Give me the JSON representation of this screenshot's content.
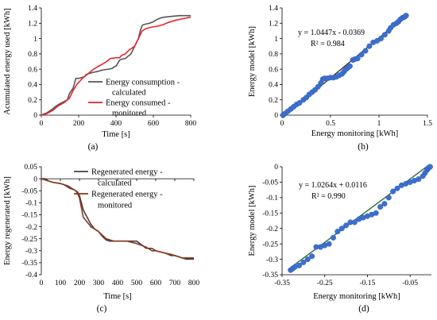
{
  "chart_data": [
    {
      "type": "line",
      "panel_label": "(a)",
      "xlabel": "Time [s]",
      "ylabel": "Acumulated energy used [kWh]",
      "xlim": [
        0,
        800
      ],
      "ylim": [
        0,
        1.4
      ],
      "xticks": [
        0,
        200,
        400,
        600,
        800
      ],
      "yticks": [
        0,
        0.2,
        0.4,
        0.6,
        0.8,
        1,
        1.2,
        1.4
      ],
      "grid": false,
      "legend_position": "right",
      "series": [
        {
          "name": "Energy consumption - calculated",
          "color": "#555555",
          "x": [
            0,
            30,
            60,
            80,
            100,
            140,
            150,
            170,
            185,
            200,
            230,
            240,
            250,
            280,
            300,
            330,
            360,
            380,
            390,
            400,
            420,
            430,
            450,
            480,
            520,
            530,
            540,
            545,
            560,
            580,
            600,
            620,
            640,
            660,
            700,
            740,
            780,
            800
          ],
          "y": [
            0,
            0.03,
            0.08,
            0.12,
            0.15,
            0.2,
            0.28,
            0.35,
            0.48,
            0.48,
            0.5,
            0.53,
            0.54,
            0.56,
            0.57,
            0.59,
            0.6,
            0.61,
            0.63,
            0.64,
            0.72,
            0.73,
            0.74,
            0.8,
            1.0,
            1.1,
            1.17,
            1.18,
            1.19,
            1.2,
            1.22,
            1.25,
            1.27,
            1.28,
            1.29,
            1.3,
            1.3,
            1.3
          ]
        },
        {
          "name": "Energy consumed - monitored",
          "color": "#e8262c",
          "x": [
            0,
            30,
            60,
            90,
            120,
            150,
            170,
            190,
            220,
            240,
            260,
            280,
            300,
            330,
            350,
            370,
            400,
            420,
            430,
            450,
            470,
            500,
            540,
            560,
            590,
            620,
            650,
            680,
            720,
            760,
            800
          ],
          "y": [
            0,
            0.02,
            0.06,
            0.12,
            0.16,
            0.22,
            0.32,
            0.4,
            0.48,
            0.52,
            0.56,
            0.6,
            0.63,
            0.67,
            0.7,
            0.74,
            0.75,
            0.75,
            0.78,
            0.8,
            0.85,
            0.9,
            1.1,
            1.13,
            1.15,
            1.16,
            1.18,
            1.21,
            1.24,
            1.26,
            1.28
          ]
        }
      ]
    },
    {
      "type": "scatter",
      "panel_label": "(b)",
      "xlabel": "Energy monitoring [kWh]",
      "ylabel": "Energy model [kWh]",
      "xlim": [
        0,
        1.5
      ],
      "ylim": [
        0,
        1.4
      ],
      "xticks": [
        0,
        0.5,
        1,
        1.5
      ],
      "yticks": [
        0,
        0.2,
        0.4,
        0.6,
        0.8,
        1,
        1.2,
        1.4
      ],
      "grid": false,
      "annotation": [
        "y = 1.0447x - 0.0369",
        "R² = 0.984"
      ],
      "trendline": {
        "slope": 1.0447,
        "intercept": -0.0369,
        "x_range": [
          0,
          1.3
        ],
        "color": "#333333"
      },
      "point_color": "#3c6fcf",
      "points": [
        [
          0.01,
          0.0
        ],
        [
          0.03,
          0.02
        ],
        [
          0.06,
          0.05
        ],
        [
          0.09,
          0.08
        ],
        [
          0.12,
          0.11
        ],
        [
          0.15,
          0.14
        ],
        [
          0.18,
          0.16
        ],
        [
          0.22,
          0.2
        ],
        [
          0.25,
          0.23
        ],
        [
          0.28,
          0.27
        ],
        [
          0.31,
          0.3
        ],
        [
          0.34,
          0.33
        ],
        [
          0.37,
          0.37
        ],
        [
          0.4,
          0.42
        ],
        [
          0.42,
          0.47
        ],
        [
          0.44,
          0.48
        ],
        [
          0.47,
          0.48
        ],
        [
          0.5,
          0.49
        ],
        [
          0.53,
          0.49
        ],
        [
          0.56,
          0.5
        ],
        [
          0.59,
          0.52
        ],
        [
          0.62,
          0.54
        ],
        [
          0.64,
          0.57
        ],
        [
          0.66,
          0.6
        ],
        [
          0.68,
          0.62
        ],
        [
          0.7,
          0.64
        ],
        [
          0.73,
          0.72
        ],
        [
          0.75,
          0.73
        ],
        [
          0.78,
          0.74
        ],
        [
          0.82,
          0.79
        ],
        [
          0.86,
          0.84
        ],
        [
          0.9,
          0.9
        ],
        [
          0.94,
          0.95
        ],
        [
          0.98,
          0.97
        ],
        [
          1.02,
          1.0
        ],
        [
          1.06,
          1.05
        ],
        [
          1.1,
          1.1
        ],
        [
          1.12,
          1.14
        ],
        [
          1.15,
          1.18
        ],
        [
          1.18,
          1.2
        ],
        [
          1.2,
          1.22
        ],
        [
          1.22,
          1.25
        ],
        [
          1.24,
          1.27
        ],
        [
          1.26,
          1.28
        ],
        [
          1.27,
          1.29
        ],
        [
          1.28,
          1.3
        ]
      ]
    },
    {
      "type": "line",
      "panel_label": "(c)",
      "xlabel": "Time [s]",
      "ylabel": "Energy regenerated [kWh]",
      "xlim": [
        0,
        800
      ],
      "ylim": [
        -0.4,
        0.05
      ],
      "xticks": [
        0,
        100,
        200,
        300,
        400,
        500,
        600,
        700,
        800
      ],
      "yticks": [
        0.05,
        0,
        -0.05,
        -0.1,
        -0.15,
        -0.2,
        -0.25,
        -0.3,
        -0.35,
        -0.4
      ],
      "grid": false,
      "legend_position": "top-right",
      "series": [
        {
          "name": "Regenerated energy - calculated",
          "color": "#4a3b47",
          "x": [
            0,
            20,
            40,
            60,
            100,
            120,
            140,
            150,
            170,
            180,
            190,
            200,
            210,
            220,
            240,
            260,
            280,
            300,
            320,
            340,
            360,
            380,
            400,
            450,
            500,
            550,
            560,
            580,
            600,
            650,
            680,
            700,
            740,
            760,
            800
          ],
          "y": [
            0,
            0,
            -0.01,
            -0.015,
            -0.02,
            -0.025,
            -0.035,
            -0.04,
            -0.045,
            -0.05,
            -0.055,
            -0.07,
            -0.1,
            -0.13,
            -0.16,
            -0.19,
            -0.21,
            -0.22,
            -0.24,
            -0.255,
            -0.26,
            -0.26,
            -0.26,
            -0.26,
            -0.26,
            -0.29,
            -0.29,
            -0.29,
            -0.3,
            -0.31,
            -0.32,
            -0.32,
            -0.33,
            -0.335,
            -0.335
          ]
        },
        {
          "name": "Regenerated energy - monitored",
          "color": "#8b3a1a",
          "x": [
            0,
            20,
            40,
            60,
            100,
            120,
            140,
            150,
            170,
            180,
            190,
            200,
            210,
            220,
            240,
            260,
            280,
            300,
            320,
            340,
            360,
            380,
            400,
            450,
            500,
            550,
            560,
            580,
            600,
            650,
            680,
            700,
            740,
            760,
            800
          ],
          "y": [
            0,
            -0.005,
            -0.01,
            -0.015,
            -0.02,
            -0.025,
            -0.03,
            -0.035,
            -0.045,
            -0.05,
            -0.06,
            -0.08,
            -0.12,
            -0.16,
            -0.18,
            -0.2,
            -0.21,
            -0.22,
            -0.235,
            -0.25,
            -0.255,
            -0.26,
            -0.26,
            -0.26,
            -0.27,
            -0.285,
            -0.29,
            -0.3,
            -0.3,
            -0.31,
            -0.315,
            -0.32,
            -0.33,
            -0.33,
            -0.33
          ]
        }
      ]
    },
    {
      "type": "scatter",
      "panel_label": "(d)",
      "xlabel": "Energy monitoring [kWh]",
      "ylabel": "Energy model [kWh]",
      "xlim": [
        -0.35,
        0.0
      ],
      "ylim": [
        -0.35,
        0.0
      ],
      "xticks": [
        -0.35,
        -0.25,
        -0.15,
        -0.05
      ],
      "xtick_labels": [
        "-0.35",
        "-0.25",
        "-0.15",
        "-0.05"
      ],
      "yticks": [
        0,
        -0.05,
        -0.1,
        -0.15,
        -0.2,
        -0.25,
        -0.3,
        -0.35
      ],
      "grid": false,
      "annotation": [
        "y = 1.0264x + 0.0116",
        "R² = 0.990"
      ],
      "trendline": {
        "slope": 1.0264,
        "intercept": 0.0116,
        "x_range": [
          -0.335,
          -0.01
        ],
        "color": "#2e6b3a"
      },
      "point_color": "#3c6fcf",
      "points": [
        [
          -0.33,
          -0.335
        ],
        [
          -0.325,
          -0.33
        ],
        [
          -0.32,
          -0.325
        ],
        [
          -0.31,
          -0.32
        ],
        [
          -0.3,
          -0.31
        ],
        [
          -0.29,
          -0.3
        ],
        [
          -0.28,
          -0.29
        ],
        [
          -0.27,
          -0.26
        ],
        [
          -0.26,
          -0.26
        ],
        [
          -0.25,
          -0.255
        ],
        [
          -0.24,
          -0.25
        ],
        [
          -0.23,
          -0.23
        ],
        [
          -0.22,
          -0.21
        ],
        [
          -0.21,
          -0.2
        ],
        [
          -0.2,
          -0.19
        ],
        [
          -0.19,
          -0.18
        ],
        [
          -0.18,
          -0.18
        ],
        [
          -0.17,
          -0.17
        ],
        [
          -0.16,
          -0.165
        ],
        [
          -0.15,
          -0.16
        ],
        [
          -0.14,
          -0.155
        ],
        [
          -0.13,
          -0.15
        ],
        [
          -0.12,
          -0.13
        ],
        [
          -0.11,
          -0.12
        ],
        [
          -0.1,
          -0.1
        ],
        [
          -0.09,
          -0.08
        ],
        [
          -0.08,
          -0.07
        ],
        [
          -0.07,
          -0.06
        ],
        [
          -0.06,
          -0.055
        ],
        [
          -0.05,
          -0.05
        ],
        [
          -0.04,
          -0.045
        ],
        [
          -0.03,
          -0.04
        ],
        [
          -0.02,
          -0.03
        ],
        [
          -0.015,
          -0.02
        ],
        [
          -0.01,
          -0.01
        ],
        [
          -0.008,
          -0.005
        ],
        [
          -0.005,
          -0.002
        ],
        [
          -0.003,
          0.0
        ]
      ]
    }
  ]
}
